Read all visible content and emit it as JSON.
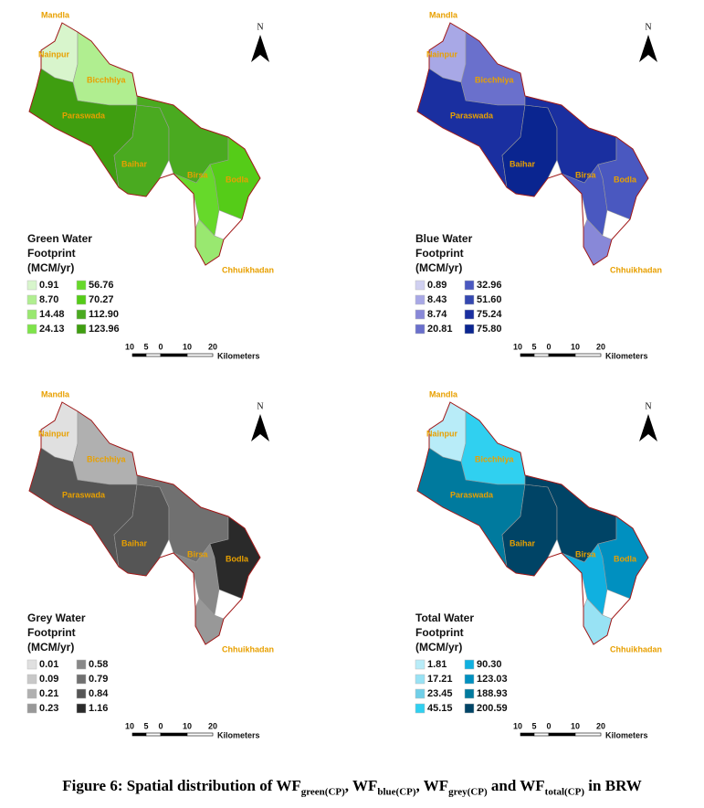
{
  "place_names": [
    "Mandla",
    "Nainpur",
    "Bicchhiya",
    "Paraswada",
    "Baihar",
    "Birsa",
    "Bodla",
    "Chhuikhadan"
  ],
  "north": "N",
  "scale_labels": [
    "10",
    "5",
    "0",
    "10",
    "20"
  ],
  "scale_unit": "Kilometers",
  "panels": [
    {
      "title": [
        "Green Water",
        "Footprint",
        "(MCM/yr)"
      ],
      "legend": [
        {
          "label": "0.91",
          "color": "#d8f5cc"
        },
        {
          "label": "8.70",
          "color": "#b0ee90"
        },
        {
          "label": "14.48",
          "color": "#99e870"
        },
        {
          "label": "24.13",
          "color": "#7ee44a"
        },
        {
          "label": "56.76",
          "color": "#66d92a"
        },
        {
          "label": "70.27",
          "color": "#55cc18"
        },
        {
          "label": "112.90",
          "color": "#4aaa20"
        },
        {
          "label": "123.96",
          "color": "#3f9e10"
        }
      ],
      "region_fills": [
        "#d8f5cc",
        "#b0ee90",
        "#3f9e10",
        "#4aaa20",
        "#4aaa20",
        "#66d92a",
        "#55cc18",
        "#99e870"
      ]
    },
    {
      "title": [
        "Blue Water",
        "Footprint",
        "(MCM/yr)"
      ],
      "legend": [
        {
          "label": "0.89",
          "color": "#d0d0f0"
        },
        {
          "label": "8.43",
          "color": "#a8a8e6"
        },
        {
          "label": "8.74",
          "color": "#8888d8"
        },
        {
          "label": "20.81",
          "color": "#6a70cc"
        },
        {
          "label": "32.96",
          "color": "#4a58c0"
        },
        {
          "label": "51.60",
          "color": "#3448b0"
        },
        {
          "label": "75.24",
          "color": "#1a2fa0"
        },
        {
          "label": "75.80",
          "color": "#0a2590"
        }
      ],
      "region_fills": [
        "#a8a8e6",
        "#6a70cc",
        "#1a2fa0",
        "#0a2590",
        "#1a2fa0",
        "#4a58c0",
        "#4a58c0",
        "#8888d8"
      ]
    },
    {
      "title": [
        "Grey Water",
        "Footprint",
        "(MCM/yr)"
      ],
      "legend": [
        {
          "label": "0.01",
          "color": "#e0e0e0"
        },
        {
          "label": "0.09",
          "color": "#c8c8c8"
        },
        {
          "label": "0.21",
          "color": "#b0b0b0"
        },
        {
          "label": "0.23",
          "color": "#989898"
        },
        {
          "label": "0.58",
          "color": "#888888"
        },
        {
          "label": "0.79",
          "color": "#707070"
        },
        {
          "label": "0.84",
          "color": "#555555"
        },
        {
          "label": "1.16",
          "color": "#2a2a2a"
        }
      ],
      "region_fills": [
        "#e0e0e0",
        "#b0b0b0",
        "#555555",
        "#555555",
        "#707070",
        "#888888",
        "#2a2a2a",
        "#989898"
      ]
    },
    {
      "title": [
        "Total Water",
        "Footprint",
        "(MCM/yr)"
      ],
      "legend": [
        {
          "label": "1.81",
          "color": "#b8ecf8"
        },
        {
          "label": "17.21",
          "color": "#98e2f4"
        },
        {
          "label": "23.45",
          "color": "#70cfe8"
        },
        {
          "label": "45.15",
          "color": "#30d0f0"
        },
        {
          "label": "90.30",
          "color": "#10b0e0"
        },
        {
          "label": "123.03",
          "color": "#0090c0"
        },
        {
          "label": "188.93",
          "color": "#007a9e"
        },
        {
          "label": "200.59",
          "color": "#004466"
        }
      ],
      "region_fills": [
        "#b8ecf8",
        "#30d0f0",
        "#007a9e",
        "#004466",
        "#004466",
        "#10b0e0",
        "#0090c0",
        "#98e2f4"
      ]
    }
  ],
  "caption": [
    "Figure 6: Spatial distribution of WF",
    "green(CP)",
    ", WF",
    "blue(CP)",
    ", WF",
    "grey(CP)",
    " and WF",
    "total(CP)",
    " in BRW"
  ]
}
